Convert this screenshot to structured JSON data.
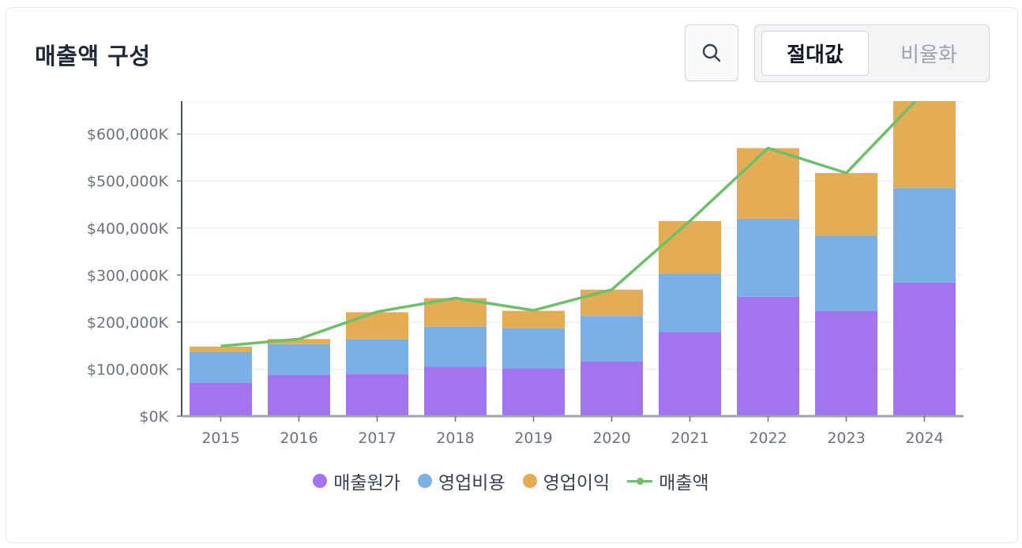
{
  "header": {
    "title": "매출액 구성"
  },
  "toolbar": {
    "search_icon": "search-icon",
    "toggle": {
      "absolute_label": "절대값",
      "ratio_label": "비율화",
      "selected": "절대값"
    }
  },
  "colors": {
    "cost_of_sales": "#a274f0",
    "operating_expenses": "#7ab0e6",
    "operating_profit": "#e4ac55",
    "revenue": "#6cc06a",
    "axis": "#6b7280",
    "grid": "#f0f0f0"
  },
  "chart_data": {
    "type": "bar",
    "stacked": true,
    "categories": [
      "2015",
      "2016",
      "2017",
      "2018",
      "2019",
      "2020",
      "2021",
      "2022",
      "2023",
      "2024"
    ],
    "series": [
      {
        "name": "매출원가",
        "type": "bar",
        "color": "#a274f0",
        "values": [
          71000,
          88000,
          89000,
          105000,
          102000,
          117000,
          179000,
          254000,
          224000,
          284000
        ]
      },
      {
        "name": "영업비용",
        "type": "bar",
        "color": "#7ab0e6",
        "values": [
          65000,
          65000,
          74000,
          85000,
          85000,
          96000,
          124000,
          166000,
          160000,
          201000
        ]
      },
      {
        "name": "영업이익",
        "type": "bar",
        "color": "#e4ac55",
        "values": [
          12000,
          11000,
          58000,
          61000,
          37000,
          56000,
          112000,
          150000,
          133000,
          205000
        ]
      },
      {
        "name": "매출액",
        "type": "line",
        "color": "#6cc06a",
        "values": [
          149000,
          164000,
          222000,
          251000,
          225000,
          269000,
          415000,
          570000,
          517000,
          690000
        ]
      }
    ],
    "y_ticks": [
      "$0K",
      "$100,000K",
      "$200,000K",
      "$300,000K",
      "$400,000K",
      "$500,000K",
      "$600,000K"
    ],
    "ylim": [
      0,
      670000
    ],
    "grid": true,
    "legend_position": "bottom-center"
  },
  "legend": {
    "items": [
      {
        "label": "매출원가",
        "kind": "dot"
      },
      {
        "label": "영업비용",
        "kind": "dot"
      },
      {
        "label": "영업이익",
        "kind": "dot"
      },
      {
        "label": "매출액",
        "kind": "line"
      }
    ]
  }
}
